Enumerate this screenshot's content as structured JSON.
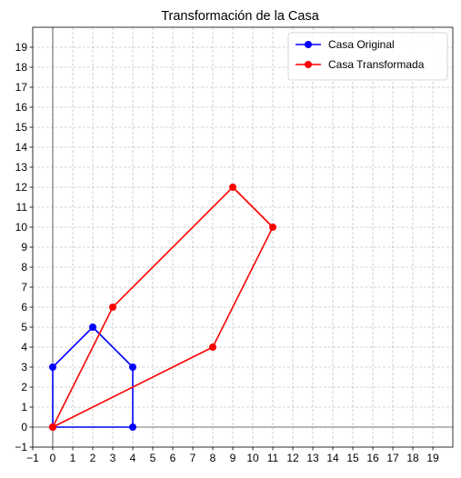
{
  "chart_data": {
    "type": "line",
    "title": "Transformación de la Casa",
    "xlabel": "",
    "ylabel": "",
    "xlim": [
      -1,
      20
    ],
    "ylim": [
      -1,
      20
    ],
    "x_ticks": [
      -1,
      0,
      1,
      2,
      3,
      4,
      5,
      6,
      7,
      8,
      9,
      10,
      11,
      12,
      13,
      14,
      15,
      16,
      17,
      18,
      19
    ],
    "y_ticks": [
      -1,
      0,
      1,
      2,
      3,
      4,
      5,
      6,
      7,
      8,
      9,
      10,
      11,
      12,
      13,
      14,
      15,
      16,
      17,
      18,
      19
    ],
    "grid": true,
    "grid_style": "dashed",
    "axis_lines_at_zero": true,
    "legend_position": "top-right",
    "series": [
      {
        "name": "Casa Original",
        "color": "#0000ff",
        "marker": "circle",
        "points": [
          [
            0,
            0
          ],
          [
            4,
            0
          ],
          [
            4,
            3
          ],
          [
            2,
            5
          ],
          [
            0,
            3
          ],
          [
            0,
            0
          ]
        ]
      },
      {
        "name": "Casa Transformada",
        "color": "#ff0000",
        "marker": "circle",
        "points": [
          [
            0,
            0
          ],
          [
            8,
            4
          ],
          [
            11,
            10
          ],
          [
            9,
            12
          ],
          [
            3,
            6
          ],
          [
            0,
            0
          ]
        ]
      }
    ]
  }
}
